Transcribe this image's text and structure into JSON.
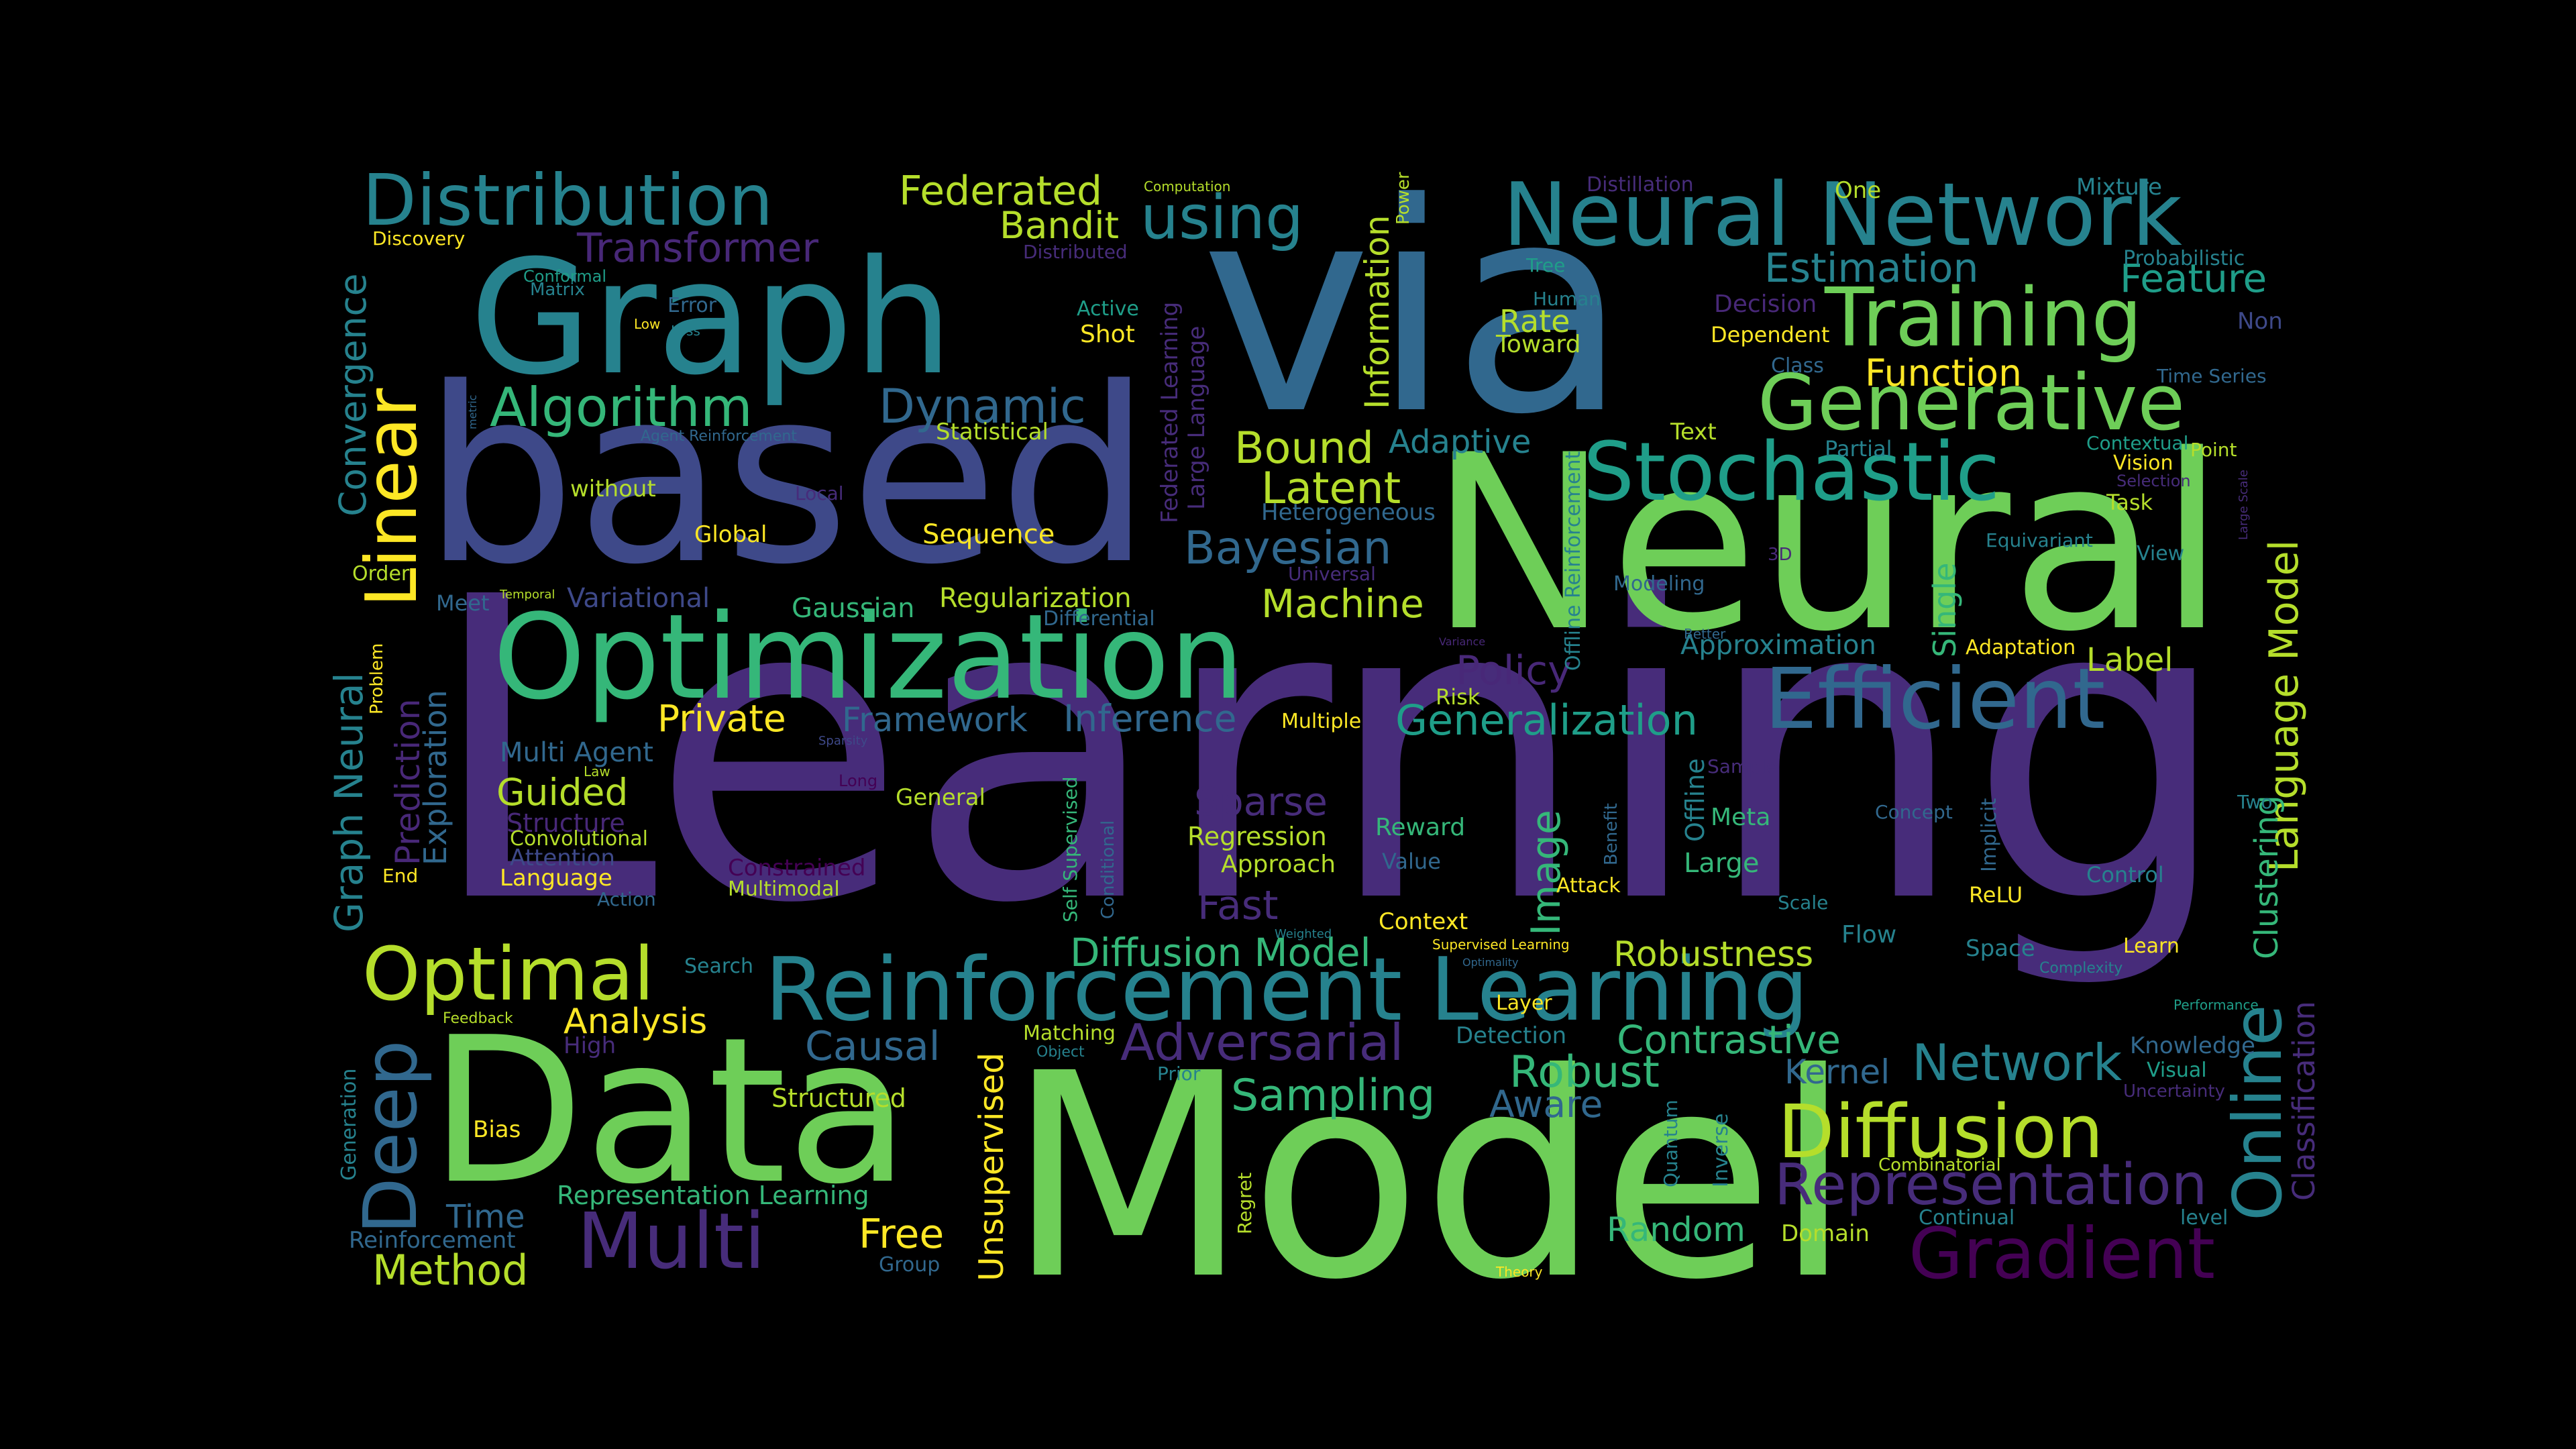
{
  "canvas": {
    "background": "#000000"
  },
  "palette": {
    "purple": "#440154",
    "indigo": "#482878",
    "violet": "#472c7a",
    "blue": "#3e4989",
    "steel": "#31688e",
    "teal": "#26828e",
    "cyan": "#1f9e89",
    "green": "#35b779",
    "lime": "#6ece58",
    "yellowgreen": "#b5de2b",
    "yellow": "#fde725"
  },
  "words": [
    {
      "text": "Learning",
      "color": "#472c7a"
    },
    {
      "text": "Model",
      "color": "#6ece58"
    },
    {
      "text": "Neural",
      "color": "#6ece58"
    },
    {
      "text": "based",
      "color": "#3e4989"
    },
    {
      "text": "via",
      "color": "#31688e"
    },
    {
      "text": "Data",
      "color": "#6ece58"
    },
    {
      "text": "Graph",
      "color": "#26828e"
    },
    {
      "text": "Optimization",
      "color": "#35b779"
    },
    {
      "text": "Reinforcement Learning",
      "color": "#26828e"
    },
    {
      "text": "Neural Network",
      "color": "#26828e"
    },
    {
      "text": "Efficient",
      "color": "#31688e"
    },
    {
      "text": "Stochastic",
      "color": "#1f9e89"
    },
    {
      "text": "Training",
      "color": "#6ece58"
    },
    {
      "text": "Generative",
      "color": "#6ece58"
    },
    {
      "text": "Distribution",
      "color": "#26828e"
    },
    {
      "text": "Diffusion",
      "color": "#b5de2b"
    },
    {
      "text": "Gradient",
      "color": "#440154"
    },
    {
      "text": "Representation",
      "color": "#472c7a"
    },
    {
      "text": "Online",
      "color": "#26828e"
    },
    {
      "text": "Optimal",
      "color": "#b5de2b"
    },
    {
      "text": "Multi",
      "color": "#472c7a"
    },
    {
      "text": "Deep",
      "color": "#31688e"
    },
    {
      "text": "Linear",
      "color": "#fde725"
    },
    {
      "text": "Algorithm",
      "color": "#35b779"
    },
    {
      "text": "Adversarial",
      "color": "#472c7a"
    },
    {
      "text": "Generalization",
      "color": "#1f9e89"
    },
    {
      "text": "Bayesian",
      "color": "#31688e"
    },
    {
      "text": "Diffusion Model",
      "color": "#35b779"
    },
    {
      "text": "Network",
      "color": "#26828e"
    },
    {
      "text": "Contrastive",
      "color": "#35b779"
    },
    {
      "text": "Federated",
      "color": "#b5de2b"
    },
    {
      "text": "using",
      "color": "#26828e"
    },
    {
      "text": "Transformer",
      "color": "#482878"
    },
    {
      "text": "Dynamic",
      "color": "#31688e"
    },
    {
      "text": "Latent",
      "color": "#b5de2b"
    },
    {
      "text": "Bound",
      "color": "#b5de2b"
    },
    {
      "text": "Machine",
      "color": "#b5de2b"
    },
    {
      "text": "Policy",
      "color": "#482878"
    },
    {
      "text": "Robust",
      "color": "#35b779"
    },
    {
      "text": "Sampling",
      "color": "#35b779"
    },
    {
      "text": "Causal",
      "color": "#31688e"
    },
    {
      "text": "Robustness",
      "color": "#b5de2b"
    },
    {
      "text": "Private",
      "color": "#fde725"
    },
    {
      "text": "Framework",
      "color": "#31688e"
    },
    {
      "text": "Inference",
      "color": "#31688e"
    },
    {
      "text": "Estimation",
      "color": "#26828e"
    },
    {
      "text": "Feature",
      "color": "#1f9e89"
    },
    {
      "text": "Function",
      "color": "#fde725"
    },
    {
      "text": "Bandit",
      "color": "#b5de2b"
    },
    {
      "text": "Information",
      "color": "#b5de2b"
    },
    {
      "text": "Adaptive",
      "color": "#26828e"
    },
    {
      "text": "Sparse",
      "color": "#472c7a"
    },
    {
      "text": "Fast",
      "color": "#472c7a"
    },
    {
      "text": "Image",
      "color": "#35b779"
    },
    {
      "text": "Method",
      "color": "#b5de2b"
    },
    {
      "text": "Time",
      "color": "#31688e"
    },
    {
      "text": "Free",
      "color": "#fde725"
    },
    {
      "text": "Aware",
      "color": "#31688e"
    },
    {
      "text": "Random",
      "color": "#35b779"
    },
    {
      "text": "Analysis",
      "color": "#fde725"
    },
    {
      "text": "Guided",
      "color": "#b5de2b"
    },
    {
      "text": "Convergence",
      "color": "#26828e"
    },
    {
      "text": "Graph Neural",
      "color": "#26828e"
    },
    {
      "text": "Prediction",
      "color": "#482878"
    },
    {
      "text": "Exploration",
      "color": "#31688e"
    },
    {
      "text": "Language Model",
      "color": "#b5de2b"
    },
    {
      "text": "Clustering",
      "color": "#35b779"
    },
    {
      "text": "Classification",
      "color": "#472c7a"
    },
    {
      "text": "Unsupervised",
      "color": "#fde725"
    },
    {
      "text": "Label",
      "color": "#b5de2b"
    },
    {
      "text": "Kernel",
      "color": "#31688e"
    },
    {
      "text": "Rate",
      "color": "#b5de2b"
    },
    {
      "text": "Single",
      "color": "#35b779"
    },
    {
      "text": "Approximation",
      "color": "#26828e"
    },
    {
      "text": "Multi Agent",
      "color": "#31688e"
    },
    {
      "text": "Structure",
      "color": "#482878"
    },
    {
      "text": "Attention",
      "color": "#3e4989"
    },
    {
      "text": "Convolutional",
      "color": "#b5de2b"
    },
    {
      "text": "Language",
      "color": "#fde725"
    },
    {
      "text": "Variational",
      "color": "#3e4989"
    },
    {
      "text": "Gaussian",
      "color": "#35b779"
    },
    {
      "text": "Regularization",
      "color": "#b5de2b"
    },
    {
      "text": "Sequence",
      "color": "#fde725"
    },
    {
      "text": "Statistical",
      "color": "#b5de2b"
    },
    {
      "text": "without",
      "color": "#b5de2b"
    },
    {
      "text": "Global",
      "color": "#fde725"
    },
    {
      "text": "Regression",
      "color": "#b5de2b"
    },
    {
      "text": "Approach",
      "color": "#b5de2b"
    },
    {
      "text": "Reward",
      "color": "#35b779"
    },
    {
      "text": "Value",
      "color": "#31688e"
    },
    {
      "text": "Context",
      "color": "#fde725"
    },
    {
      "text": "Meta",
      "color": "#35b779"
    },
    {
      "text": "Large",
      "color": "#35b779"
    },
    {
      "text": "Offline",
      "color": "#26828e"
    },
    {
      "text": "Decision",
      "color": "#482878"
    },
    {
      "text": "Dependent",
      "color": "#fde725"
    },
    {
      "text": "Toward",
      "color": "#b5de2b"
    },
    {
      "text": "Shot",
      "color": "#fde725"
    },
    {
      "text": "Active",
      "color": "#1f9e89"
    },
    {
      "text": "Error",
      "color": "#31688e"
    },
    {
      "text": "Discovery",
      "color": "#fde725"
    },
    {
      "text": "Conformal",
      "color": "#1f9e89"
    },
    {
      "text": "Matrix",
      "color": "#26828e"
    },
    {
      "text": "Low",
      "color": "#fde725"
    },
    {
      "text": "Loss",
      "color": "#26828e"
    },
    {
      "text": "Order",
      "color": "#b5de2b"
    },
    {
      "text": "Meet",
      "color": "#31688e"
    },
    {
      "text": "Temporal",
      "color": "#b5de2b"
    },
    {
      "text": "Problem",
      "color": "#fde725"
    },
    {
      "text": "Law",
      "color": "#b5de2b"
    },
    {
      "text": "Long",
      "color": "#440154"
    },
    {
      "text": "Sparsity",
      "color": "#3e4989"
    },
    {
      "text": "General",
      "color": "#b5de2b"
    },
    {
      "text": "Constrained",
      "color": "#440154"
    },
    {
      "text": "Multimodal",
      "color": "#b5de2b"
    },
    {
      "text": "Self Supervised",
      "color": "#35b779"
    },
    {
      "text": "Conditional",
      "color": "#31688e"
    },
    {
      "text": "End",
      "color": "#fde725"
    },
    {
      "text": "Action",
      "color": "#31688e"
    },
    {
      "text": "Search",
      "color": "#26828e"
    },
    {
      "text": "High",
      "color": "#472c7a"
    },
    {
      "text": "Feedback",
      "color": "#b5de2b"
    },
    {
      "text": "Generation",
      "color": "#26828e"
    },
    {
      "text": "Bias",
      "color": "#fde725"
    },
    {
      "text": "Reinforcement",
      "color": "#31688e"
    },
    {
      "text": "Representation Learning",
      "color": "#35b779"
    },
    {
      "text": "Structured",
      "color": "#b5de2b"
    },
    {
      "text": "Group",
      "color": "#31688e"
    },
    {
      "text": "Matching",
      "color": "#b5de2b"
    },
    {
      "text": "Object",
      "color": "#26828e"
    },
    {
      "text": "Prior",
      "color": "#26828e"
    },
    {
      "text": "Regret",
      "color": "#b5de2b"
    },
    {
      "text": "Theory",
      "color": "#fde725"
    },
    {
      "text": "Detection",
      "color": "#26828e"
    },
    {
      "text": "Layer",
      "color": "#fde725"
    },
    {
      "text": "Supervised Learning",
      "color": "#fde725"
    },
    {
      "text": "Weighted",
      "color": "#26828e"
    },
    {
      "text": "Optimality",
      "color": "#31688e"
    },
    {
      "text": "Variance",
      "color": "#482878"
    },
    {
      "text": "Multiple",
      "color": "#fde725"
    },
    {
      "text": "Risk",
      "color": "#b5de2b"
    },
    {
      "text": "Attack",
      "color": "#fde725"
    },
    {
      "text": "Benefit",
      "color": "#31688e"
    },
    {
      "text": "Quantum",
      "color": "#26828e"
    },
    {
      "text": "Inverse",
      "color": "#26828e"
    },
    {
      "text": "Domain",
      "color": "#b5de2b"
    },
    {
      "text": "Scale",
      "color": "#26828e"
    },
    {
      "text": "Flow",
      "color": "#26828e"
    },
    {
      "text": "ReLU",
      "color": "#fde725"
    },
    {
      "text": "Control",
      "color": "#26828e"
    },
    {
      "text": "Concept",
      "color": "#31688e"
    },
    {
      "text": "Implicit",
      "color": "#31688e"
    },
    {
      "text": "Two",
      "color": "#26828e"
    },
    {
      "text": "Space",
      "color": "#26828e"
    },
    {
      "text": "Learn",
      "color": "#fde725"
    },
    {
      "text": "Complexity",
      "color": "#26828e"
    },
    {
      "text": "Performance",
      "color": "#1f9e89"
    },
    {
      "text": "Knowledge",
      "color": "#31688e"
    },
    {
      "text": "Visual",
      "color": "#1f9e89"
    },
    {
      "text": "Uncertainty",
      "color": "#472c7a"
    },
    {
      "text": "Combinatorial",
      "color": "#b5de2b"
    },
    {
      "text": "Continual",
      "color": "#26828e"
    },
    {
      "text": "level",
      "color": "#26828e"
    },
    {
      "text": "Sample",
      "color": "#472c7a"
    },
    {
      "text": "Equivariant",
      "color": "#26828e"
    },
    {
      "text": "3D",
      "color": "#482878"
    },
    {
      "text": "Better",
      "color": "#31688e"
    },
    {
      "text": "Adaptation",
      "color": "#fde725"
    },
    {
      "text": "Modeling",
      "color": "#31688e"
    },
    {
      "text": "Offline Reinforcement",
      "color": "#26828e"
    },
    {
      "text": "Text",
      "color": "#b5de2b"
    },
    {
      "text": "Partial",
      "color": "#26828e"
    },
    {
      "text": "Heterogeneous",
      "color": "#31688e"
    },
    {
      "text": "Universal",
      "color": "#472c7a"
    },
    {
      "text": "Differential",
      "color": "#31688e"
    },
    {
      "text": "Federated Learning",
      "color": "#472c7a"
    },
    {
      "text": "Large Language",
      "color": "#472c7a"
    },
    {
      "text": "Local",
      "color": "#472c7a"
    },
    {
      "text": "Agent Reinforcement",
      "color": "#31688e"
    },
    {
      "text": "metric",
      "color": "#31688e"
    },
    {
      "text": "Computation",
      "color": "#b5de2b"
    },
    {
      "text": "Distributed",
      "color": "#472c7a"
    },
    {
      "text": "Power",
      "color": "#b5de2b"
    },
    {
      "text": "Human",
      "color": "#26828e"
    },
    {
      "text": "Tree",
      "color": "#1f9e89"
    },
    {
      "text": "Distillation",
      "color": "#472c7a"
    },
    {
      "text": "One",
      "color": "#b5de2b"
    },
    {
      "text": "Mixture",
      "color": "#26828e"
    },
    {
      "text": "Probabilistic",
      "color": "#26828e"
    },
    {
      "text": "Non",
      "color": "#3e4989"
    },
    {
      "text": "Class",
      "color": "#31688e"
    },
    {
      "text": "Time Series",
      "color": "#31688e"
    },
    {
      "text": "Contextual",
      "color": "#1f9e89"
    },
    {
      "text": "Vision",
      "color": "#fde725"
    },
    {
      "text": "Selection",
      "color": "#472c7a"
    },
    {
      "text": "Task",
      "color": "#b5de2b"
    },
    {
      "text": "Point",
      "color": "#b5de2b"
    },
    {
      "text": "Large Scale",
      "color": "#472c7a"
    },
    {
      "text": "View",
      "color": "#26828e"
    }
  ]
}
